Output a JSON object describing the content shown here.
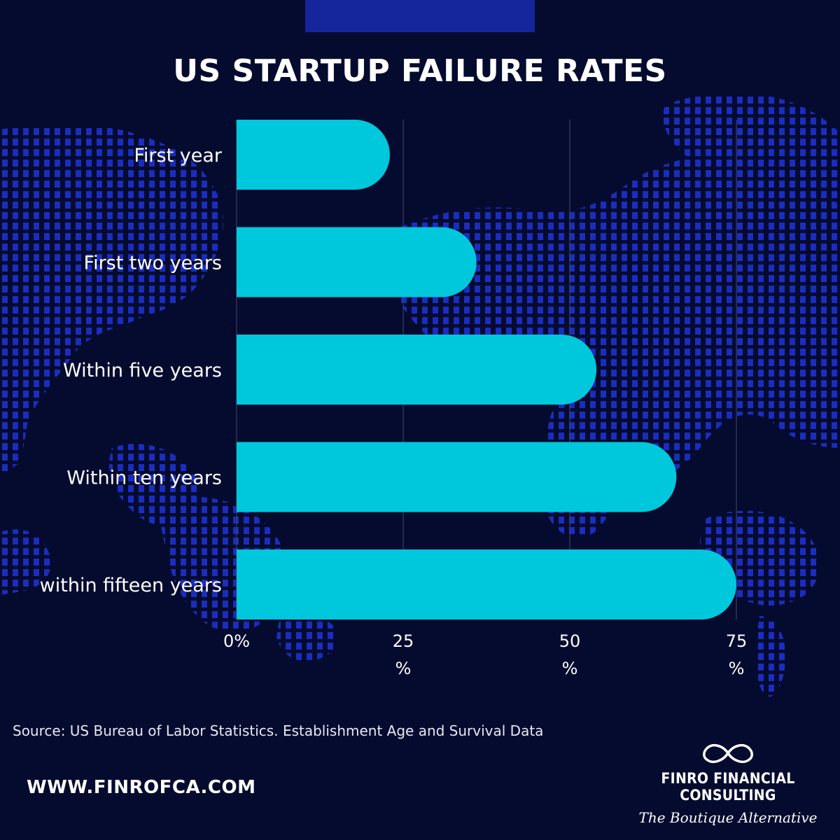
{
  "colors": {
    "background": "#040b2e",
    "accent_bar": "#15269c",
    "map_dots": "#1a2dbf",
    "bars": "#00c8dc",
    "gridlines": "#3a4066",
    "text": "#ffffff"
  },
  "chart_data": {
    "type": "bar",
    "orientation": "horizontal",
    "title": "US STARTUP FAILURE RATES",
    "categories": [
      "First year",
      "First two years",
      "Within five years",
      "Within ten years",
      "within fifteen years"
    ],
    "values": [
      23,
      36,
      54,
      66,
      75
    ],
    "xlim": [
      0,
      75
    ],
    "ticks": [
      {
        "value": 0,
        "line1": "0%",
        "line2": ""
      },
      {
        "value": 25,
        "line1": "25",
        "line2": "%"
      },
      {
        "value": 50,
        "line1": "50",
        "line2": "%"
      },
      {
        "value": 75,
        "line1": "75",
        "line2": "%"
      }
    ],
    "grid": true,
    "legend": "none"
  },
  "footer": {
    "source": "Source: US Bureau of Labor Statistics. Establishment Age and Survival Data",
    "website": "WWW.FINROFCA.COM",
    "brand_name": "FINRO FINANCIAL CONSULTING",
    "brand_tagline": "The Boutique Alternative",
    "brand_logo_icon": "infinity-icon"
  }
}
